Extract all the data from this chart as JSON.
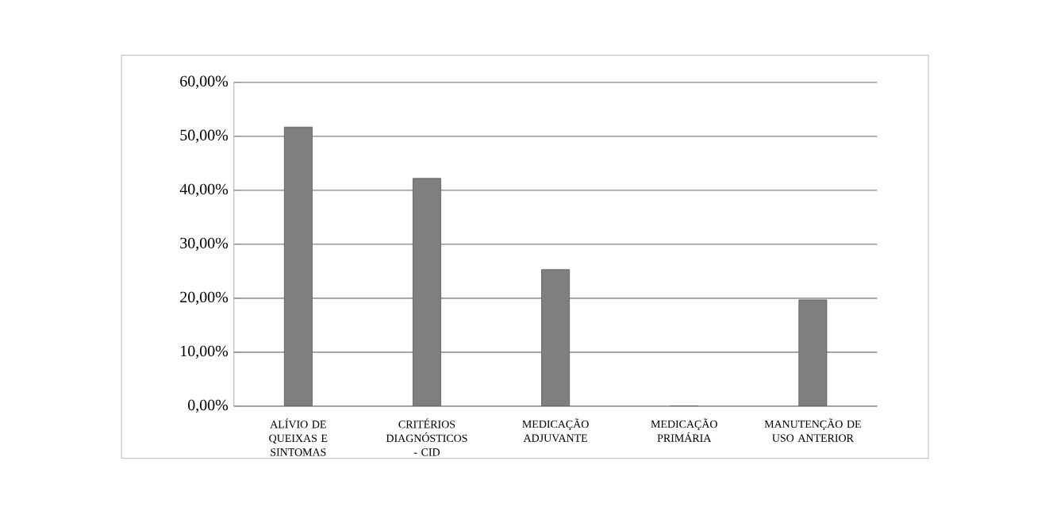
{
  "chart_data": {
    "type": "bar",
    "categories": [
      "ALÍVIO DE QUEIXAS E SINTOMAS",
      "CRITÉRIOS DIAGNÓSTICOS - CID",
      "MEDICAÇÃO ADJUVANTE",
      "MEDICAÇÃO PRIMÁRIA",
      "MANUTENÇÃO DE USO ANTERIOR"
    ],
    "values": [
      51.7,
      42.2,
      25.3,
      0,
      19.7
    ],
    "color": "#7f7f7f",
    "ylim": [
      0,
      60
    ],
    "yticks": [
      {
        "value": 0,
        "label": "0,00%"
      },
      {
        "value": 10,
        "label": "10,00%"
      },
      {
        "value": 20,
        "label": "20,00%"
      },
      {
        "value": 30,
        "label": "30,00%"
      },
      {
        "value": 40,
        "label": "40,00%"
      },
      {
        "value": 50,
        "label": "50,00%"
      },
      {
        "value": 60,
        "label": "60,00%"
      }
    ],
    "grid": "y"
  }
}
